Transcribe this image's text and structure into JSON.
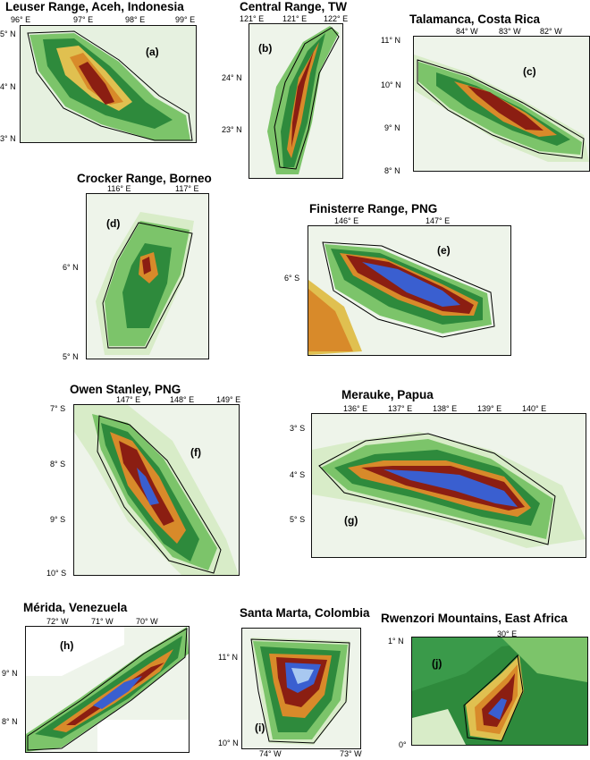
{
  "figure": {
    "panels": [
      {
        "id": "a",
        "title": "Leuser Range, Aceh, Indonesia",
        "letter": "(a)",
        "lon_ticks": [
          "96° E",
          "97° E",
          "98° E",
          "99° E"
        ],
        "lat_ticks": [
          "5° N",
          "4° N",
          "3° N"
        ]
      },
      {
        "id": "b",
        "title": "Central Range, TW",
        "letter": "(b)",
        "lon_ticks": [
          "121° E",
          "121° E",
          "122° E"
        ],
        "lat_ticks": [
          "24° N",
          "23° N"
        ]
      },
      {
        "id": "c",
        "title": "Talamanca, Costa Rica",
        "letter": "(c)",
        "lon_ticks": [
          "84° W",
          "83° W",
          "82° W"
        ],
        "lat_ticks": [
          "11° N",
          "10° N",
          "9° N",
          "8° N"
        ]
      },
      {
        "id": "d",
        "title": "Crocker Range, Borneo",
        "letter": "(d)",
        "lon_ticks": [
          "116° E",
          "117° E"
        ],
        "lat_ticks": [
          "6° N",
          "5° N"
        ]
      },
      {
        "id": "e",
        "title": "Finisterre Range, PNG",
        "letter": "(e)",
        "lon_ticks": [
          "146° E",
          "147° E"
        ],
        "lat_ticks": [
          "6° S"
        ]
      },
      {
        "id": "f",
        "title": "Owen Stanley, PNG",
        "letter": "(f)",
        "lon_ticks": [
          "147° E",
          "148° E",
          "149° E"
        ],
        "lat_ticks": [
          "7° S",
          "8° S",
          "9° S",
          "10° S"
        ]
      },
      {
        "id": "g",
        "title": "Merauke, Papua",
        "letter": "(g)",
        "lon_ticks": [
          "136° E",
          "137° E",
          "138° E",
          "139° E",
          "140° E"
        ],
        "lat_ticks": [
          "3° S",
          "4° S",
          "5° S"
        ]
      },
      {
        "id": "h",
        "title": "Mérida, Venezuela",
        "letter": "(h)",
        "lon_ticks": [
          "72° W",
          "71° W",
          "70° W"
        ],
        "lat_ticks": [
          "9° N",
          "8° N"
        ]
      },
      {
        "id": "i",
        "title": "Santa Marta, Colombia",
        "letter": "(i)",
        "lon_ticks": [
          "74° W",
          "73° W"
        ],
        "lat_ticks": [
          "11° N",
          "10° N"
        ]
      },
      {
        "id": "j",
        "title": "Rwenzori Mountains, East Africa",
        "letter": "(j)",
        "lon_ticks": [
          "30° E"
        ],
        "lat_ticks": [
          "1° N",
          "0°"
        ]
      }
    ],
    "colors": {
      "lowland": "#d8ecc8",
      "low_green": "#7cc46a",
      "mid_green": "#2e8a3c",
      "yellow": "#e0c050",
      "orange": "#d88a2a",
      "red_brown": "#8b1e12",
      "blue": "#3a5fd0",
      "light_blue": "#a8c8f0",
      "outline": "#000000"
    }
  }
}
